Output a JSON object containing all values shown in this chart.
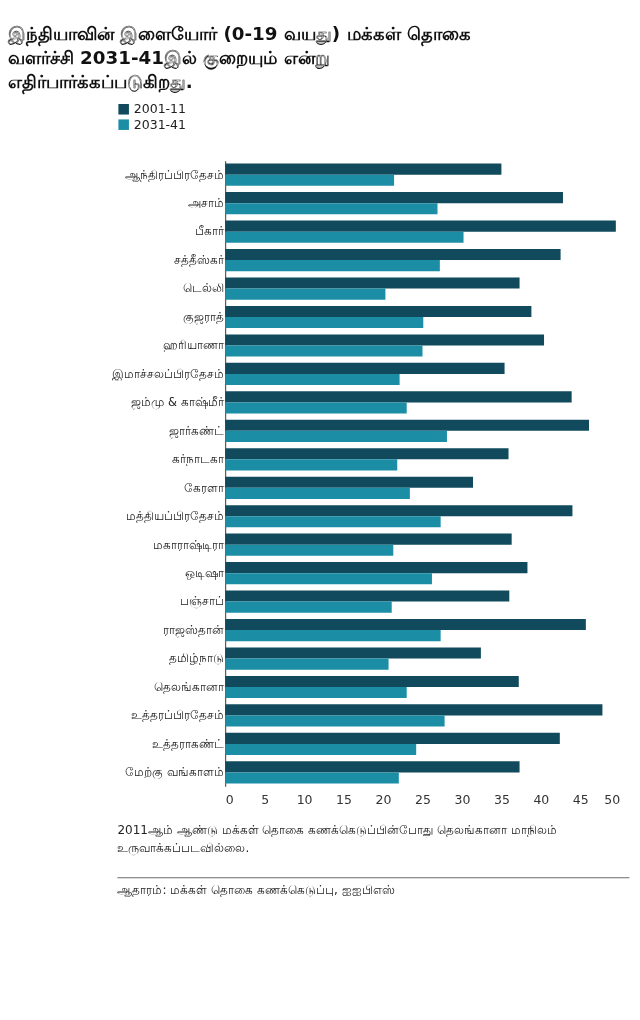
{
  "chart_data": {
    "type": "bar",
    "orientation": "horizontal",
    "title": "இந்தியாவின் இளையோர் (0-19 வயது) மக்கள் தொகை வளர்ச்சி 2031-41இல் குறையும் என்று எதிர்பார்க்கப்படுகிறது.",
    "categories": [
      "ஆந்திரப்பிரதேசம்",
      "அசாம்",
      "பீகார்",
      "சத்தீஸ்கர்",
      "டெல்லி",
      "குஜராத்",
      "ஹரியாணா",
      "இமாச்சலப்பிரதேசம்",
      "ஜம்மு & காஷ்மீர்",
      "ஜார்கண்ட்",
      "கர்நாடகா",
      "கேரளா",
      "மத்தியப்பிரதேசம்",
      "மகாராஷ்டிரா",
      "ஒடிஷா",
      "பஞ்சாப்",
      "ராஜஸ்தான்",
      "தமிழ்நாடு",
      "தெலங்கானா",
      "உத்தரப்பிரதேசம்",
      "உத்தராகண்ட்",
      "மேற்கு வங்காளம்"
    ],
    "series": [
      {
        "name": "2001-11",
        "color": "#114a5c",
        "values": [
          35,
          42.8,
          49.5,
          42.5,
          37.3,
          38.8,
          40.4,
          35.4,
          43.9,
          46.1,
          35.9,
          31.4,
          44,
          36.3,
          38.3,
          36,
          45.7,
          32.4,
          37.2,
          47.8,
          42.4,
          37.3
        ]
      },
      {
        "name": "2031-41",
        "color": "#1b8ea6",
        "values": [
          21.4,
          26.9,
          30.2,
          27.2,
          20.3,
          25.1,
          25,
          22.1,
          23,
          28.1,
          21.8,
          23.4,
          27.3,
          21.3,
          26.2,
          21.1,
          27.3,
          20.7,
          23,
          27.8,
          24.2,
          22
        ]
      }
    ],
    "xlim": [
      0,
      50
    ],
    "xticks": [
      0,
      5,
      10,
      15,
      20,
      25,
      30,
      35,
      40,
      45,
      50
    ],
    "grid": false,
    "legend": "top left",
    "annotations": [
      "2011ஆம் ஆண்டு மக்கள் தொகை கணக்கெடுப்பின்போது தெலங்கானா மாநிலம் உருவாக்கப்படவில்லை.",
      "ஆதாரம்: மக்கள் தொகை கணக்கெடுப்பு, ஐஐபிஎஸ்"
    ]
  }
}
